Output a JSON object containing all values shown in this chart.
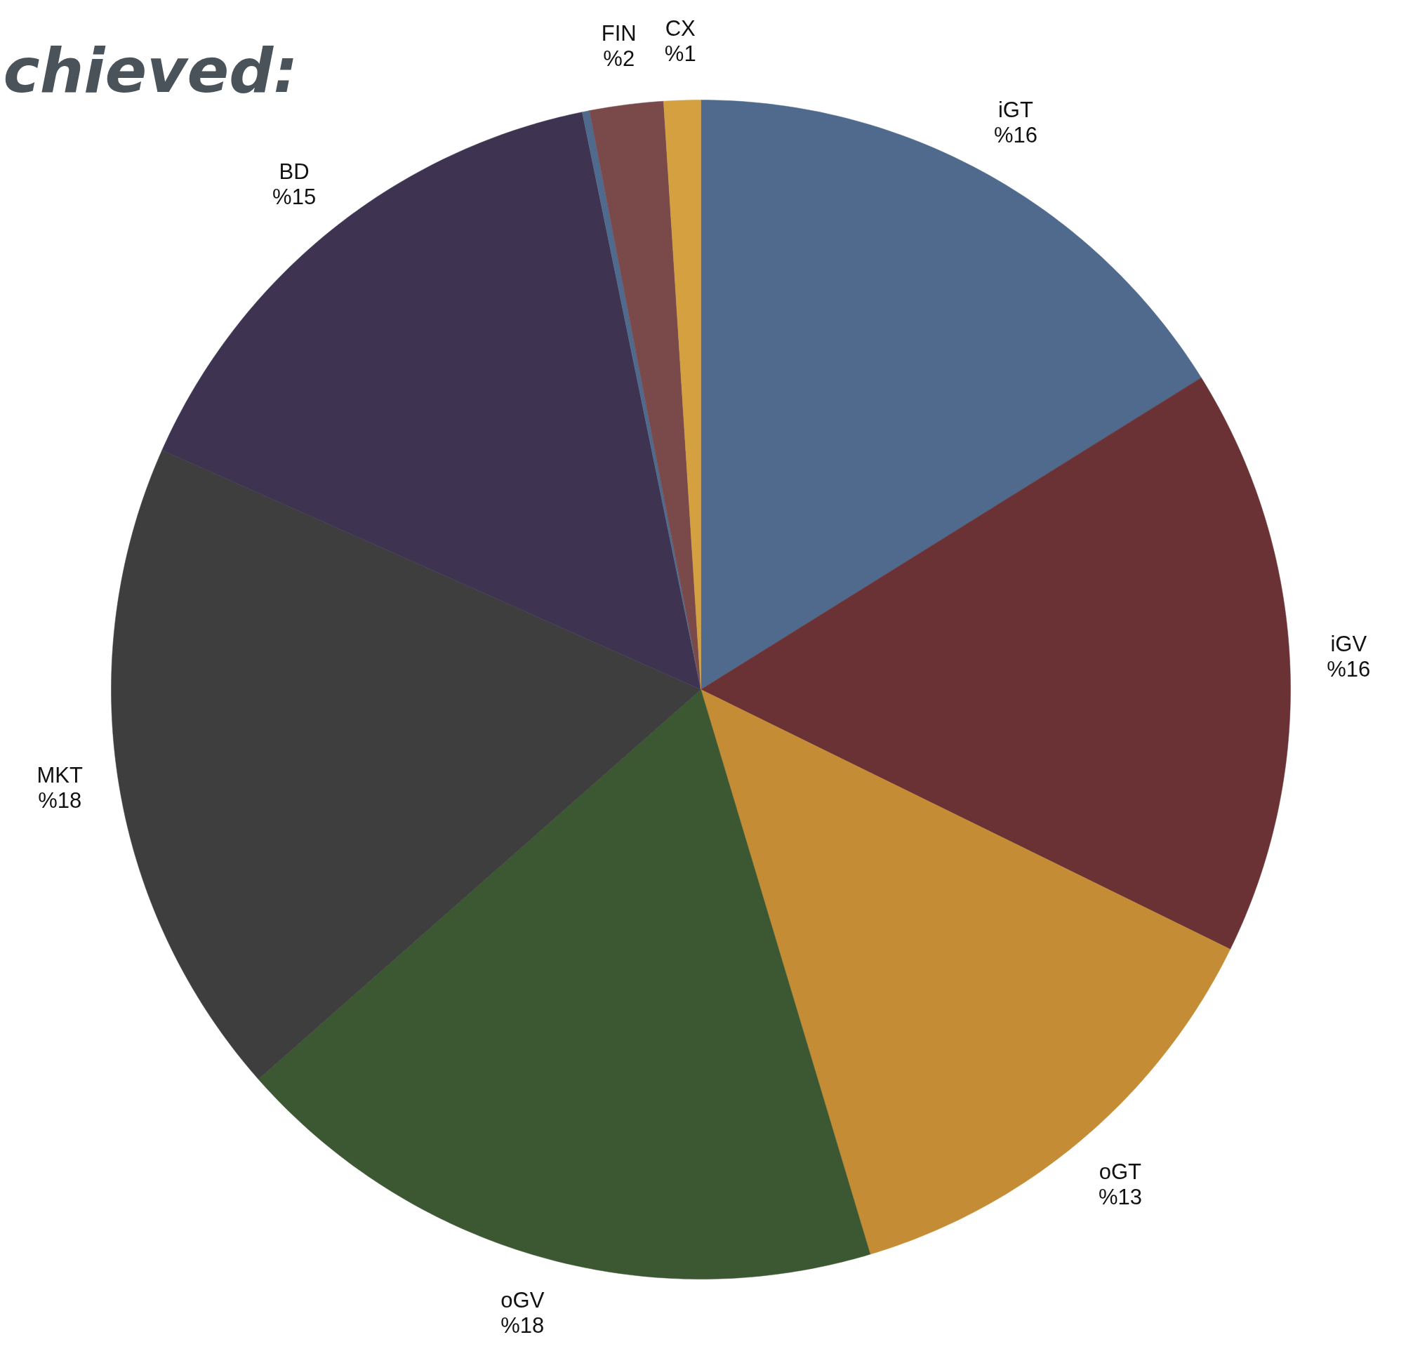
{
  "chart_data": {
    "type": "pie",
    "title": "chieved:",
    "categories": [
      "iGT",
      "iGV",
      "oGT",
      "oGV",
      "MKT",
      "BD",
      null,
      "FIN",
      "CX"
    ],
    "values": [
      16,
      16,
      13,
      18,
      18,
      15,
      0.2,
      2,
      1
    ],
    "value_labels": [
      "%16",
      "%16",
      "%13",
      "%18",
      "%18",
      "%15",
      null,
      "%2",
      "%1"
    ],
    "colors": [
      "#4f6a8c",
      "#6b3236",
      "#c48c35",
      "#3c5832",
      "#3e3e3e",
      "#3e3452",
      "#4f6a8c",
      "#7a4a4a",
      "#d4a040"
    ]
  }
}
